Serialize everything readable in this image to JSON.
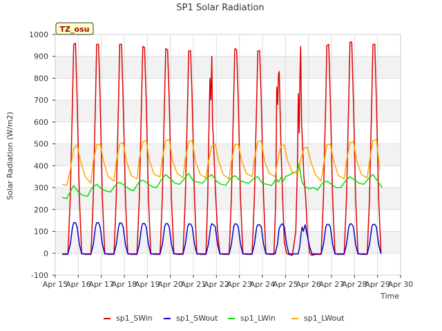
{
  "chart_data": {
    "type": "line",
    "title": "SP1 Solar Radiation",
    "xlabel": "Time",
    "ylabel": "Solar Radiation (W/m2)",
    "badge": "TZ_osu",
    "xlim": [
      15,
      30
    ],
    "ylim": [
      -100,
      1000
    ],
    "x_ticks": [
      {
        "value": 15,
        "label": "Apr 15"
      },
      {
        "value": 16,
        "label": "Apr 16"
      },
      {
        "value": 17,
        "label": "Apr 17"
      },
      {
        "value": 18,
        "label": "Apr 18"
      },
      {
        "value": 19,
        "label": "Apr 19"
      },
      {
        "value": 20,
        "label": "Apr 20"
      },
      {
        "value": 21,
        "label": "Apr 21"
      },
      {
        "value": 22,
        "label": "Apr 22"
      },
      {
        "value": 23,
        "label": "Apr 23"
      },
      {
        "value": 24,
        "label": "Apr 24"
      },
      {
        "value": 25,
        "label": "Apr 25"
      },
      {
        "value": 26,
        "label": "Apr 26"
      },
      {
        "value": 27,
        "label": "Apr 27"
      },
      {
        "value": 28,
        "label": "Apr 28"
      },
      {
        "value": 29,
        "label": "Apr 29"
      },
      {
        "value": 30,
        "label": "Apr 30"
      }
    ],
    "y_ticks": [
      -100,
      0,
      100,
      200,
      300,
      400,
      500,
      600,
      700,
      800,
      900,
      1000
    ],
    "grid": true,
    "legend_position": "bottom",
    "series": [
      {
        "name": "sp1_SWin",
        "color": "#dd0000",
        "x": [
          15.3,
          15.55,
          15.65,
          15.75,
          15.8,
          15.88,
          15.95,
          16.05,
          16.15,
          16.3,
          16.55,
          16.65,
          16.75,
          16.8,
          16.88,
          16.95,
          17.05,
          17.15,
          17.3,
          17.55,
          17.65,
          17.75,
          17.8,
          17.88,
          17.95,
          18.05,
          18.15,
          18.3,
          18.55,
          18.65,
          18.75,
          18.8,
          18.88,
          18.95,
          19.05,
          19.15,
          19.3,
          19.55,
          19.65,
          19.75,
          19.8,
          19.88,
          19.95,
          20.05,
          20.15,
          20.3,
          20.55,
          20.65,
          20.75,
          20.8,
          20.88,
          20.95,
          21.05,
          21.15,
          21.3,
          21.55,
          21.62,
          21.68,
          21.72,
          21.76,
          21.8,
          21.83,
          21.88,
          21.95,
          22.05,
          22.15,
          22.3,
          22.55,
          22.65,
          22.75,
          22.8,
          22.88,
          22.95,
          23.05,
          23.15,
          23.3,
          23.55,
          23.65,
          23.75,
          23.8,
          23.88,
          23.95,
          24.05,
          24.15,
          24.3,
          24.5,
          24.58,
          24.62,
          24.66,
          24.7,
          24.73,
          24.76,
          24.8,
          24.88,
          24.95,
          25.05,
          25.15,
          25.3,
          25.45,
          25.52,
          25.56,
          25.6,
          25.63,
          25.66,
          25.7,
          25.74,
          25.8,
          25.88,
          25.95,
          26.05,
          26.15,
          26.3,
          26.55,
          26.65,
          26.75,
          26.8,
          26.88,
          26.95,
          27.05,
          27.15,
          27.3,
          27.55,
          27.65,
          27.75,
          27.8,
          27.88,
          27.95,
          28.05,
          28.15,
          28.3,
          28.55,
          28.65,
          28.75,
          28.8,
          28.88,
          28.95,
          29.05,
          29.15
        ],
        "y": [
          -5,
          -5,
          250,
          700,
          955,
          960,
          700,
          250,
          0,
          -5,
          -5,
          250,
          700,
          955,
          955,
          700,
          250,
          0,
          -5,
          -5,
          250,
          700,
          955,
          955,
          700,
          250,
          0,
          -5,
          -5,
          250,
          700,
          945,
          940,
          700,
          250,
          0,
          -5,
          -5,
          250,
          700,
          935,
          930,
          700,
          250,
          0,
          -5,
          -5,
          250,
          700,
          925,
          925,
          700,
          250,
          0,
          -5,
          -5,
          250,
          600,
          800,
          700,
          900,
          600,
          500,
          300,
          100,
          0,
          -5,
          -5,
          250,
          700,
          935,
          930,
          700,
          250,
          0,
          -5,
          -5,
          250,
          700,
          925,
          925,
          700,
          250,
          0,
          -5,
          -5,
          250,
          760,
          680,
          820,
          830,
          700,
          500,
          250,
          50,
          0,
          -5,
          -10,
          100,
          400,
          730,
          550,
          800,
          945,
          600,
          500,
          350,
          250,
          100,
          0,
          -10,
          -5,
          -5,
          250,
          700,
          950,
          955,
          700,
          250,
          0,
          -5,
          -5,
          250,
          700,
          965,
          965,
          700,
          250,
          0,
          -5,
          -5,
          250,
          700,
          955,
          955,
          700,
          250,
          0
        ]
      },
      {
        "name": "sp1_SWout",
        "color": "#0000cc",
        "x": [
          15.3,
          15.55,
          15.65,
          15.75,
          15.8,
          15.88,
          15.95,
          16.05,
          16.15,
          16.3,
          16.55,
          16.65,
          16.75,
          16.8,
          16.88,
          16.95,
          17.05,
          17.15,
          17.3,
          17.55,
          17.65,
          17.75,
          17.8,
          17.88,
          17.95,
          18.05,
          18.15,
          18.3,
          18.55,
          18.65,
          18.75,
          18.8,
          18.88,
          18.95,
          19.05,
          19.15,
          19.3,
          19.55,
          19.65,
          19.75,
          19.8,
          19.88,
          19.95,
          20.05,
          20.15,
          20.3,
          20.55,
          20.65,
          20.75,
          20.8,
          20.88,
          20.95,
          21.05,
          21.15,
          21.3,
          21.55,
          21.65,
          21.75,
          21.8,
          21.88,
          21.95,
          22.05,
          22.15,
          22.3,
          22.55,
          22.65,
          22.75,
          22.8,
          22.88,
          22.95,
          23.05,
          23.15,
          23.3,
          23.55,
          23.65,
          23.75,
          23.8,
          23.88,
          23.95,
          24.05,
          24.15,
          24.3,
          24.55,
          24.65,
          24.72,
          24.78,
          24.85,
          24.95,
          25.05,
          25.15,
          25.3,
          25.55,
          25.62,
          25.68,
          25.72,
          25.78,
          25.85,
          25.95,
          26.05,
          26.15,
          26.3,
          26.55,
          26.65,
          26.75,
          26.8,
          26.88,
          26.95,
          27.05,
          27.15,
          27.3,
          27.55,
          27.65,
          27.75,
          27.8,
          27.88,
          27.95,
          28.05,
          28.15,
          28.3,
          28.55,
          28.65,
          28.75,
          28.8,
          28.88,
          28.95,
          29.05,
          29.15
        ],
        "y": [
          -3,
          -3,
          40,
          120,
          140,
          140,
          120,
          40,
          -3,
          -3,
          -3,
          40,
          120,
          140,
          140,
          120,
          40,
          -3,
          -3,
          -3,
          40,
          120,
          138,
          138,
          120,
          40,
          -3,
          -3,
          -3,
          40,
          120,
          136,
          136,
          120,
          40,
          -3,
          -3,
          -3,
          40,
          120,
          135,
          135,
          120,
          40,
          -3,
          -3,
          -3,
          40,
          120,
          134,
          134,
          120,
          40,
          -3,
          -3,
          -3,
          40,
          120,
          135,
          130,
          120,
          40,
          -3,
          -3,
          -3,
          40,
          120,
          134,
          134,
          120,
          40,
          -3,
          -3,
          -3,
          40,
          120,
          130,
          130,
          120,
          40,
          -3,
          -3,
          -3,
          40,
          110,
          125,
          135,
          120,
          40,
          -3,
          -3,
          -3,
          30,
          90,
          120,
          100,
          130,
          80,
          30,
          -3,
          -3,
          -3,
          40,
          120,
          132,
          132,
          120,
          40,
          -3,
          -3,
          -3,
          40,
          120,
          134,
          134,
          120,
          40,
          -3,
          -3,
          -3,
          40,
          120,
          132,
          132,
          120,
          40,
          -3
        ]
      },
      {
        "name": "sp1_LWin",
        "color": "#00dd00",
        "x": [
          15.3,
          15.5,
          15.65,
          15.8,
          16.0,
          16.2,
          16.4,
          16.6,
          16.8,
          17.0,
          17.2,
          17.4,
          17.6,
          17.8,
          18.0,
          18.2,
          18.4,
          18.6,
          18.8,
          19.0,
          19.2,
          19.4,
          19.6,
          19.8,
          20.0,
          20.2,
          20.4,
          20.6,
          20.8,
          21.0,
          21.2,
          21.4,
          21.6,
          21.8,
          22.0,
          22.2,
          22.4,
          22.6,
          22.8,
          23.0,
          23.2,
          23.4,
          23.6,
          23.8,
          24.0,
          24.2,
          24.4,
          24.6,
          24.7,
          24.8,
          24.9,
          25.0,
          25.2,
          25.4,
          25.5,
          25.6,
          25.7,
          25.8,
          26.0,
          26.2,
          26.4,
          26.6,
          26.8,
          27.0,
          27.2,
          27.4,
          27.6,
          27.8,
          28.0,
          28.2,
          28.4,
          28.6,
          28.8,
          29.0,
          29.2
        ],
        "y": [
          255,
          250,
          280,
          310,
          280,
          265,
          260,
          300,
          315,
          295,
          285,
          280,
          310,
          325,
          310,
          295,
          285,
          320,
          335,
          320,
          305,
          300,
          335,
          360,
          340,
          320,
          315,
          340,
          365,
          330,
          325,
          320,
          345,
          360,
          330,
          315,
          310,
          340,
          355,
          335,
          325,
          320,
          340,
          350,
          320,
          315,
          310,
          340,
          325,
          345,
          330,
          350,
          360,
          370,
          375,
          410,
          330,
          310,
          295,
          300,
          290,
          320,
          330,
          315,
          300,
          300,
          330,
          350,
          335,
          320,
          315,
          340,
          360,
          330,
          300
        ]
      },
      {
        "name": "sp1_LWout",
        "color": "#ffa500",
        "x": [
          15.3,
          15.5,
          15.65,
          15.8,
          15.95,
          16.1,
          16.3,
          16.55,
          16.65,
          16.8,
          16.95,
          17.1,
          17.3,
          17.55,
          17.65,
          17.8,
          17.95,
          18.1,
          18.3,
          18.55,
          18.65,
          18.8,
          18.95,
          19.1,
          19.3,
          19.55,
          19.65,
          19.8,
          19.95,
          20.1,
          20.3,
          20.55,
          20.65,
          20.8,
          20.95,
          21.1,
          21.3,
          21.55,
          21.65,
          21.8,
          21.95,
          22.1,
          22.3,
          22.55,
          22.65,
          22.8,
          22.95,
          23.1,
          23.3,
          23.55,
          23.65,
          23.8,
          23.95,
          24.1,
          24.3,
          24.55,
          24.65,
          24.8,
          24.95,
          25.1,
          25.3,
          25.55,
          25.65,
          25.8,
          25.95,
          26.1,
          26.3,
          26.55,
          26.65,
          26.8,
          26.95,
          27.1,
          27.3,
          27.55,
          27.65,
          27.8,
          27.95,
          28.1,
          28.3,
          28.55,
          28.65,
          28.8,
          28.95,
          29.1
        ],
        "y": [
          315,
          310,
          380,
          480,
          495,
          420,
          350,
          320,
          420,
          495,
          500,
          420,
          350,
          330,
          420,
          500,
          505,
          420,
          355,
          340,
          430,
          510,
          515,
          420,
          360,
          350,
          430,
          515,
          520,
          420,
          365,
          345,
          430,
          510,
          515,
          420,
          360,
          345,
          420,
          490,
          500,
          420,
          360,
          340,
          420,
          495,
          500,
          420,
          365,
          350,
          430,
          510,
          515,
          420,
          365,
          350,
          420,
          490,
          495,
          420,
          370,
          370,
          420,
          480,
          485,
          420,
          360,
          330,
          400,
          495,
          500,
          420,
          355,
          340,
          420,
          505,
          510,
          420,
          360,
          345,
          420,
          515,
          520,
          380
        ]
      }
    ]
  }
}
